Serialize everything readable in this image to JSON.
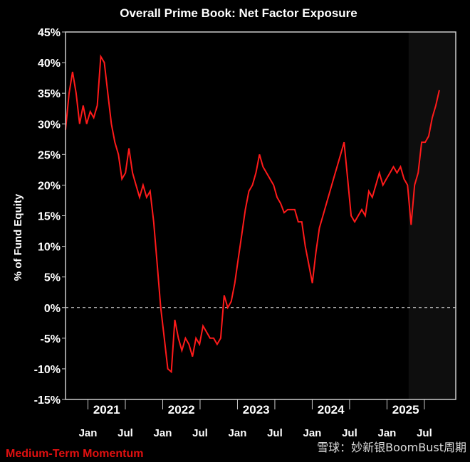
{
  "chart_data": {
    "type": "line",
    "title": "Overall Prime Book: Net Factor Exposure",
    "ylabel": "% of Fund Equity",
    "xlabel": "",
    "ylim": [
      -15,
      45
    ],
    "xlim": [
      2020.7,
      2025.92
    ],
    "yticks": [
      45,
      40,
      35,
      30,
      25,
      20,
      15,
      10,
      5,
      0,
      -5,
      -10,
      -15
    ],
    "ytick_labels": [
      "45%",
      "40%",
      "35%",
      "30%",
      "25%",
      "20%",
      "15%",
      "10%",
      "5%",
      "0%",
      "-5%",
      "-10%",
      "-15%"
    ],
    "month_ticks": [
      {
        "x": 2021.0,
        "label": "Jan"
      },
      {
        "x": 2021.5,
        "label": "Jul"
      },
      {
        "x": 2022.0,
        "label": "Jan"
      },
      {
        "x": 2022.5,
        "label": "Jul"
      },
      {
        "x": 2023.0,
        "label": "Jan"
      },
      {
        "x": 2023.5,
        "label": "Jul"
      },
      {
        "x": 2024.0,
        "label": "Jan"
      },
      {
        "x": 2024.5,
        "label": "Jul"
      },
      {
        "x": 2025.0,
        "label": "Jan"
      },
      {
        "x": 2025.5,
        "label": "Jul"
      }
    ],
    "year_labels": [
      {
        "x": 2021.25,
        "label": "2021"
      },
      {
        "x": 2022.25,
        "label": "2022"
      },
      {
        "x": 2023.25,
        "label": "2023"
      },
      {
        "x": 2024.25,
        "label": "2024"
      },
      {
        "x": 2025.25,
        "label": "2025"
      }
    ],
    "shaded_from": 2025.29,
    "zero_line": 0,
    "series": [
      {
        "name": "Net Factor Exposure",
        "color": "#ff1a1a",
        "x_start": 2020.7,
        "x_end": 2025.7,
        "values": [
          29,
          35,
          38.5,
          35,
          30,
          33,
          30,
          32,
          31,
          33,
          41,
          40,
          35,
          30,
          27,
          25,
          21,
          22,
          26,
          22,
          20,
          18,
          20,
          18,
          19,
          14,
          7,
          0,
          -5,
          -10,
          -10.5,
          -2,
          -5,
          -7,
          -5,
          -6,
          -8,
          -5,
          -6,
          -3,
          -4,
          -5,
          -5,
          -6,
          -5,
          2,
          0,
          1,
          4,
          8,
          12,
          16,
          19,
          20,
          22,
          25,
          23,
          22,
          21,
          20,
          18,
          17,
          15.5,
          16,
          16,
          16,
          14,
          14,
          10,
          7,
          4,
          9,
          13,
          15,
          17,
          19,
          21,
          23,
          25,
          27,
          21,
          15,
          14,
          15,
          16,
          15,
          19,
          18,
          20,
          22,
          20,
          21,
          22,
          23,
          22,
          23,
          21,
          20,
          13.5,
          20,
          22,
          27,
          27,
          28,
          31,
          33,
          35.5
        ]
      }
    ]
  },
  "footer": {
    "label": "Medium-Term Momentum",
    "watermark": "雪球：妙新银BoomBust周期"
  }
}
